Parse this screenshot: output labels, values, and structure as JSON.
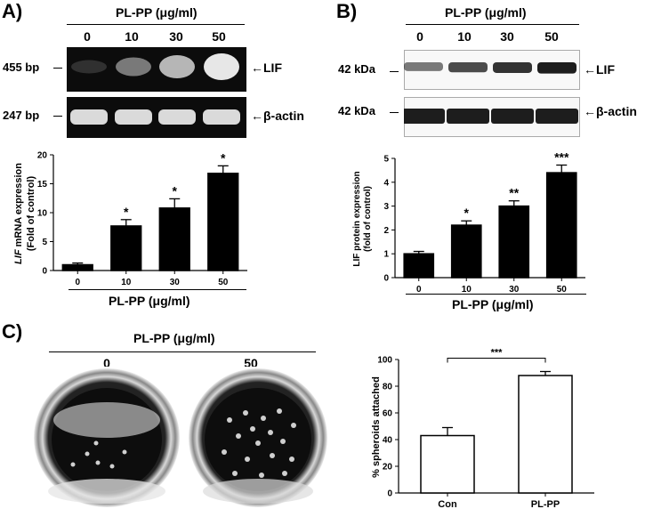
{
  "panelA": {
    "label": "A)",
    "header": "PL-PP (μg/ml)",
    "lanes": [
      "0",
      "10",
      "30",
      "50"
    ],
    "bands": [
      {
        "mw": "455 bp",
        "name": "LIF",
        "intensity": [
          0.15,
          0.45,
          0.7,
          0.9
        ]
      },
      {
        "mw": "247 bp",
        "name": "β-actin",
        "intensity": [
          0.85,
          0.85,
          0.85,
          0.85
        ]
      }
    ]
  },
  "panelB": {
    "label": "B)",
    "header": "PL-PP (μg/ml)",
    "lanes": [
      "0",
      "10",
      "30",
      "50"
    ],
    "bands": [
      {
        "mw": "42 kDa",
        "name": "LIF",
        "intensity": [
          0.55,
          0.75,
          0.85,
          0.95
        ]
      },
      {
        "mw": "42 kDa",
        "name": "β-actin",
        "intensity": [
          0.95,
          0.95,
          0.95,
          0.95
        ]
      }
    ]
  },
  "panelC": {
    "label": "C)",
    "header": "PL-PP (μg/ml)",
    "wells": [
      "0",
      "50"
    ]
  },
  "chart_data": [
    {
      "type": "bar",
      "ylabel_italic": "LIF",
      "ylabel_line1": " mRNA expression",
      "ylabel_line2": "(Fold of control)",
      "xlabel": "PL-PP (μg/ml)",
      "categories": [
        "0",
        "10",
        "30",
        "50"
      ],
      "values": [
        1,
        7.7,
        10.8,
        16.8
      ],
      "errors": [
        0.3,
        1.1,
        1.6,
        1.3
      ],
      "annotations": [
        "",
        "*",
        "*",
        "*"
      ],
      "ylim": [
        0,
        20
      ],
      "yticks": [
        "0",
        "5",
        "10",
        "15",
        "20"
      ],
      "fill": "#000000"
    },
    {
      "type": "bar",
      "ylabel_line1": "LIF protein expression",
      "ylabel_line2": "(fold of control)",
      "xlabel": "PL-PP (μg/ml)",
      "categories": [
        "0",
        "10",
        "30",
        "50"
      ],
      "values": [
        1,
        2.2,
        3.0,
        4.4
      ],
      "errors": [
        0.1,
        0.18,
        0.22,
        0.32
      ],
      "annotations": [
        "",
        "*",
        "**",
        "***"
      ],
      "ylim": [
        0,
        5
      ],
      "yticks": [
        "0",
        "1",
        "2",
        "3",
        "4",
        "5"
      ],
      "fill": "#000000"
    },
    {
      "type": "bar",
      "ylabel": "% spheroids attached",
      "categories": [
        "Con",
        "PL-PP"
      ],
      "values": [
        43,
        88
      ],
      "errors": [
        6,
        3
      ],
      "significance": "***",
      "ylim": [
        0,
        100
      ],
      "yticks": [
        "0",
        "20",
        "40",
        "60",
        "80",
        "100"
      ],
      "fill": "#ffffff"
    }
  ]
}
